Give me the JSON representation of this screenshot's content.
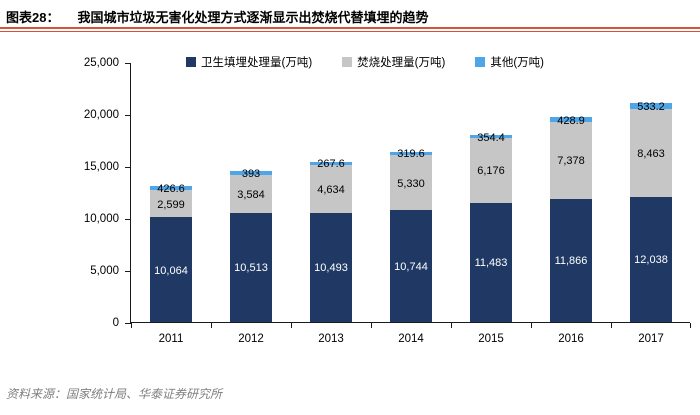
{
  "figure": {
    "label": "图表28：",
    "title": "我国城市垃圾无害化处理方式逐渐显示出焚烧代替填埋的趋势",
    "source_note": "资料来源：国家统计局、华泰证券研究所"
  },
  "colors": {
    "rule": "#d9523c",
    "axis": "#1a1a1a"
  },
  "chart_data": {
    "type": "bar",
    "stacked": true,
    "grid": false,
    "legend_position": "top",
    "categories": [
      "2011",
      "2012",
      "2013",
      "2014",
      "2015",
      "2016",
      "2017"
    ],
    "series": [
      {
        "name": "卫生填埋处理量(万吨)",
        "color": "#1f3864",
        "label_color": "#ffffff",
        "values": [
          10064,
          10513,
          10493,
          10744,
          11483,
          11866,
          12038
        ],
        "labels": [
          "10,064",
          "10,513",
          "10,493",
          "10,744",
          "11,483",
          "11,866",
          "12,038"
        ]
      },
      {
        "name": "焚烧处理量(万吨)",
        "color": "#c6c6c6",
        "label_color": "#000000",
        "values": [
          2599,
          3584,
          4634,
          5330,
          6176,
          7378,
          8463
        ],
        "labels": [
          "2,599",
          "3,584",
          "4,634",
          "5,330",
          "6,176",
          "7,378",
          "8,463"
        ]
      },
      {
        "name": "其他(万吨)",
        "color": "#4ea6e9",
        "label_color": "#000000",
        "values": [
          426.6,
          393,
          267.6,
          319.6,
          354.4,
          428.9,
          533.2
        ],
        "labels": [
          "426.6",
          "393",
          "267.6",
          "319.6",
          "354.4",
          "428.9",
          "533.2"
        ]
      }
    ],
    "ylim": [
      0,
      25000
    ],
    "ytick_step": 5000,
    "ytick_labels": [
      "0",
      "5,000",
      "10,000",
      "15,000",
      "20,000",
      "25,000"
    ]
  }
}
